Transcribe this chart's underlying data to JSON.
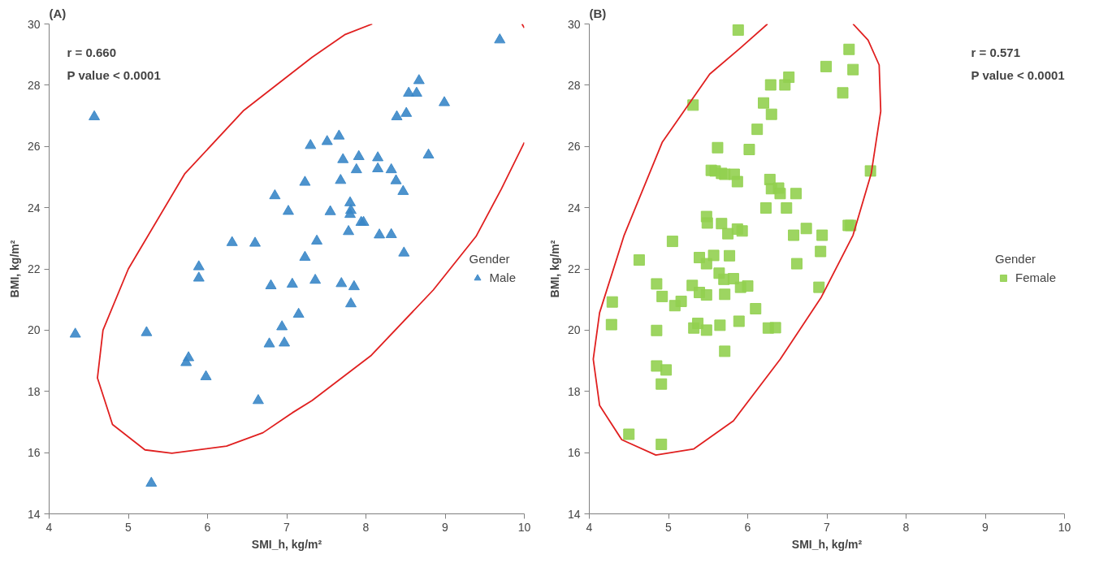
{
  "chart_data": [
    {
      "type": "scatter",
      "title": "(A)",
      "xlabel": "SMI_h, kg/m²",
      "ylabel": "BMI, kg/m²",
      "legend_title": "Gender",
      "legend": "right",
      "grid": false,
      "xlim": [
        4,
        10
      ],
      "ylim": [
        14,
        30
      ],
      "xticks": [
        4,
        5,
        6,
        7,
        8,
        9,
        10
      ],
      "yticks": [
        14,
        16,
        18,
        20,
        22,
        24,
        26,
        28,
        30
      ],
      "annotations": [
        "r = 0.660",
        "P value < 0.0001"
      ],
      "series": [
        {
          "name": "Male",
          "color": "#3a87c8",
          "marker": "triangle",
          "x": [
            4.57,
            4.33,
            5.23,
            5.29,
            5.89,
            5.89,
            5.76,
            5.73,
            5.98,
            6.64,
            6.31,
            6.6,
            6.8,
            7.07,
            6.78,
            6.97,
            6.94,
            7.15,
            6.85,
            7.02,
            7.23,
            7.3,
            7.23,
            7.36,
            7.38,
            9.69,
            8.67,
            8.54,
            8.64,
            8.99,
            8.39,
            8.51,
            7.51,
            7.66,
            7.71,
            7.91,
            8.15,
            7.88,
            8.15,
            8.32,
            8.38,
            7.68,
            8.79,
            8.47,
            7.8,
            7.81,
            7.8,
            7.55,
            7.94,
            7.97,
            7.78,
            8.17,
            8.32,
            8.48,
            7.69,
            7.85,
            7.81
          ],
          "values": [
            26.97,
            19.87,
            19.92,
            15.0,
            22.07,
            21.7,
            19.1,
            18.94,
            18.48,
            17.7,
            22.86,
            22.84,
            21.45,
            21.5,
            19.55,
            19.58,
            20.11,
            20.52,
            24.39,
            23.88,
            24.83,
            26.03,
            22.38,
            21.63,
            22.91,
            29.48,
            28.15,
            27.74,
            27.74,
            27.43,
            26.97,
            27.08,
            26.16,
            26.34,
            25.57,
            25.67,
            25.63,
            25.24,
            25.27,
            25.24,
            24.88,
            24.89,
            25.72,
            24.53,
            24.16,
            23.91,
            23.78,
            23.87,
            23.52,
            23.52,
            23.22,
            23.11,
            23.12,
            22.52,
            21.52,
            21.42,
            20.86
          ]
        },
        {
          "type": "line",
          "color": "#e02020",
          "marker": "none",
          "x": [
            8.08,
            7.74,
            7.32,
            6.45,
            5.71,
            5.0,
            4.68,
            4.61,
            4.8,
            5.21,
            5.55,
            6.24,
            6.7,
            7.07,
            7.32,
            8.06,
            8.85,
            9.39,
            9.71,
            10.0,
            null,
            9.97,
            10.0
          ],
          "values": [
            30.0,
            29.66,
            28.91,
            27.16,
            25.1,
            22.0,
            20.0,
            18.44,
            16.92,
            16.09,
            15.98,
            16.21,
            16.65,
            17.3,
            17.7,
            19.16,
            21.31,
            23.06,
            24.61,
            26.13,
            null,
            30.0,
            29.87
          ]
        }
      ]
    },
    {
      "type": "scatter",
      "title": "(B)",
      "xlabel": "SMI_h, kg/m²",
      "ylabel": "BMI, kg/m²",
      "legend_title": "Gender",
      "legend": "right",
      "grid": false,
      "xlim": [
        4,
        10
      ],
      "ylim": [
        14,
        30
      ],
      "xticks": [
        4,
        5,
        6,
        7,
        8,
        9,
        10
      ],
      "yticks": [
        14,
        16,
        18,
        20,
        22,
        24,
        26,
        28,
        30
      ],
      "annotations": [
        "r = 0.571",
        "P value < 0.0001"
      ],
      "series": [
        {
          "name": "Female",
          "color": "#92d050",
          "marker": "square",
          "x": [
            5.88,
            5.31,
            5.62,
            5.54,
            5.59,
            5.67,
            5.71,
            5.83,
            5.87,
            5.48,
            5.49,
            5.67,
            5.75,
            5.87,
            5.05,
            4.63,
            5.39,
            5.48,
            5.57,
            5.77,
            4.85,
            4.92,
            5.08,
            5.16,
            5.3,
            5.39,
            5.48,
            5.64,
            5.7,
            5.82,
            5.71,
            5.91,
            4.29,
            4.28,
            4.85,
            5.32,
            5.37,
            5.48,
            5.65,
            5.89,
            5.71,
            4.85,
            4.97,
            4.91,
            4.5,
            4.91,
            7.28,
            6.99,
            7.33,
            6.52,
            6.29,
            6.47,
            7.2,
            6.2,
            6.3,
            6.12,
            6.02,
            7.55,
            6.28,
            6.3,
            6.39,
            6.41,
            6.61,
            6.23,
            6.49,
            5.93,
            6.58,
            6.74,
            6.94,
            7.27,
            7.3,
            6.92,
            6.62,
            6.9,
            6.0,
            6.1,
            6.26,
            6.35
          ],
          "values": [
            29.8,
            27.35,
            25.96,
            25.22,
            25.2,
            25.12,
            25.09,
            25.09,
            24.85,
            23.71,
            23.5,
            23.48,
            23.15,
            23.3,
            22.9,
            22.29,
            22.37,
            22.17,
            22.44,
            22.43,
            21.51,
            21.1,
            20.8,
            20.94,
            21.46,
            21.23,
            21.15,
            21.86,
            21.66,
            21.68,
            21.17,
            21.4,
            20.92,
            20.18,
            19.99,
            20.07,
            20.22,
            20.0,
            20.16,
            20.29,
            19.31,
            18.83,
            18.7,
            18.24,
            16.6,
            16.27,
            29.17,
            28.61,
            28.51,
            28.26,
            28.01,
            28.01,
            27.75,
            27.42,
            27.05,
            26.56,
            25.9,
            25.2,
            24.92,
            24.62,
            24.64,
            24.46,
            24.46,
            23.99,
            23.99,
            23.24,
            23.1,
            23.32,
            23.1,
            23.42,
            23.42,
            22.57,
            22.17,
            21.4,
            21.44,
            20.7,
            20.07,
            20.08
          ]
        },
        {
          "type": "line",
          "color": "#e02020",
          "marker": "none",
          "x": [
            6.25,
            5.91,
            5.52,
            4.92,
            4.44,
            4.13,
            4.05,
            4.13,
            4.41,
            4.84,
            5.32,
            5.82,
            6.41,
            6.93,
            7.33,
            7.56,
            7.68,
            7.66,
            7.52,
            7.33
          ],
          "values": [
            30.0,
            29.22,
            28.36,
            26.13,
            23.1,
            20.57,
            19.05,
            17.54,
            16.42,
            15.92,
            16.12,
            17.04,
            19.05,
            21.08,
            23.1,
            25.12,
            27.15,
            28.66,
            29.47,
            30.0
          ]
        }
      ]
    }
  ]
}
